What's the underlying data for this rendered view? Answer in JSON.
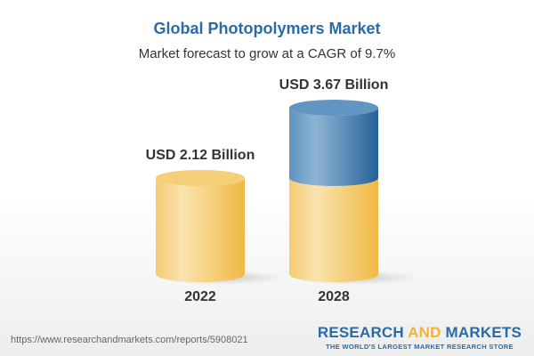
{
  "chart_data": {
    "type": "bar",
    "style": "3d-cylinder",
    "title": "Global Photopolymers Market",
    "subtitle": "Market forecast to grow at a CAGR of 9.7%",
    "categories": [
      "2022",
      "2028"
    ],
    "values": [
      2.12,
      3.67
    ],
    "data_labels": [
      "USD 2.12 Billion",
      "USD 3.67 Billion"
    ],
    "unit": "USD Billion",
    "colors": {
      "base": "#f2c55c",
      "growth": "#3f7fb5"
    },
    "grid": false
  },
  "footer": {
    "url": "https://www.researchandmarkets.com/reports/5908021",
    "logo_word1": "RESEARCH ",
    "logo_word2": "AND",
    "logo_word3": " MARKETS",
    "logo_tagline": "THE WORLD'S LARGEST MARKET RESEARCH STORE"
  }
}
